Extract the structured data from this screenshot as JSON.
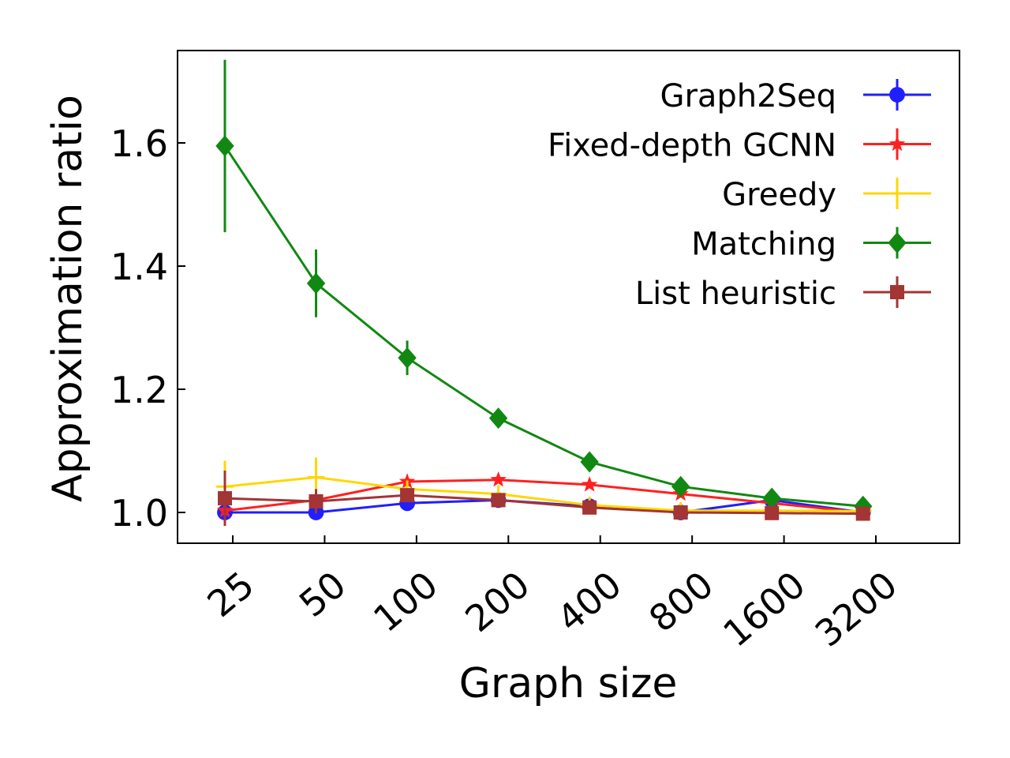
{
  "chart_data": {
    "type": "line",
    "title": "",
    "xlabel": "Graph size",
    "ylabel": "Approximation ratio",
    "categories": [
      "25",
      "50",
      "100",
      "200",
      "400",
      "800",
      "1600",
      "3200"
    ],
    "ylim": [
      0.95,
      1.75
    ],
    "yticks": [
      "1.0",
      "1.2",
      "1.4",
      "1.6"
    ],
    "grid": false,
    "legend_position": "top-right",
    "series": [
      {
        "name": "Graph2Seq",
        "color": "#1f1fff",
        "marker": "circle",
        "values": [
          1.0,
          1.0,
          1.015,
          1.02,
          1.01,
          1.0,
          1.02,
          1.0
        ],
        "errors": [
          0.02,
          0.005,
          0.005,
          0.005,
          0.005,
          0.003,
          0.003,
          0.002
        ]
      },
      {
        "name": "Fixed-depth GCNN",
        "color": "#ff2020",
        "marker": "star",
        "values": [
          1.003,
          1.02,
          1.05,
          1.053,
          1.045,
          1.03,
          1.015,
          1.0
        ],
        "errors": [
          0.01,
          0.008,
          0.006,
          0.005,
          0.005,
          0.004,
          0.003,
          0.002
        ]
      },
      {
        "name": "Greedy",
        "color": "#ffd700",
        "marker": "plus",
        "values": [
          1.042,
          1.057,
          1.038,
          1.03,
          1.012,
          1.003,
          1.003,
          1.002
        ],
        "errors": [
          0.042,
          0.032,
          0.008,
          0.005,
          0.004,
          0.003,
          0.002,
          0.002
        ]
      },
      {
        "name": "Matching",
        "color": "#118811",
        "marker": "diamond",
        "values": [
          1.595,
          1.372,
          1.251,
          1.153,
          1.082,
          1.042,
          1.023,
          1.01
        ],
        "errors": [
          0.14,
          0.055,
          0.028,
          0.01,
          0.008,
          0.005,
          0.004,
          0.003
        ]
      },
      {
        "name": "List heuristic",
        "color": "#a33535",
        "marker": "square",
        "values": [
          1.023,
          1.018,
          1.028,
          1.02,
          1.008,
          1.0,
          0.999,
          0.998
        ],
        "errors": [
          0.045,
          0.02,
          0.006,
          0.004,
          0.003,
          0.002,
          0.002,
          0.002
        ]
      }
    ]
  }
}
